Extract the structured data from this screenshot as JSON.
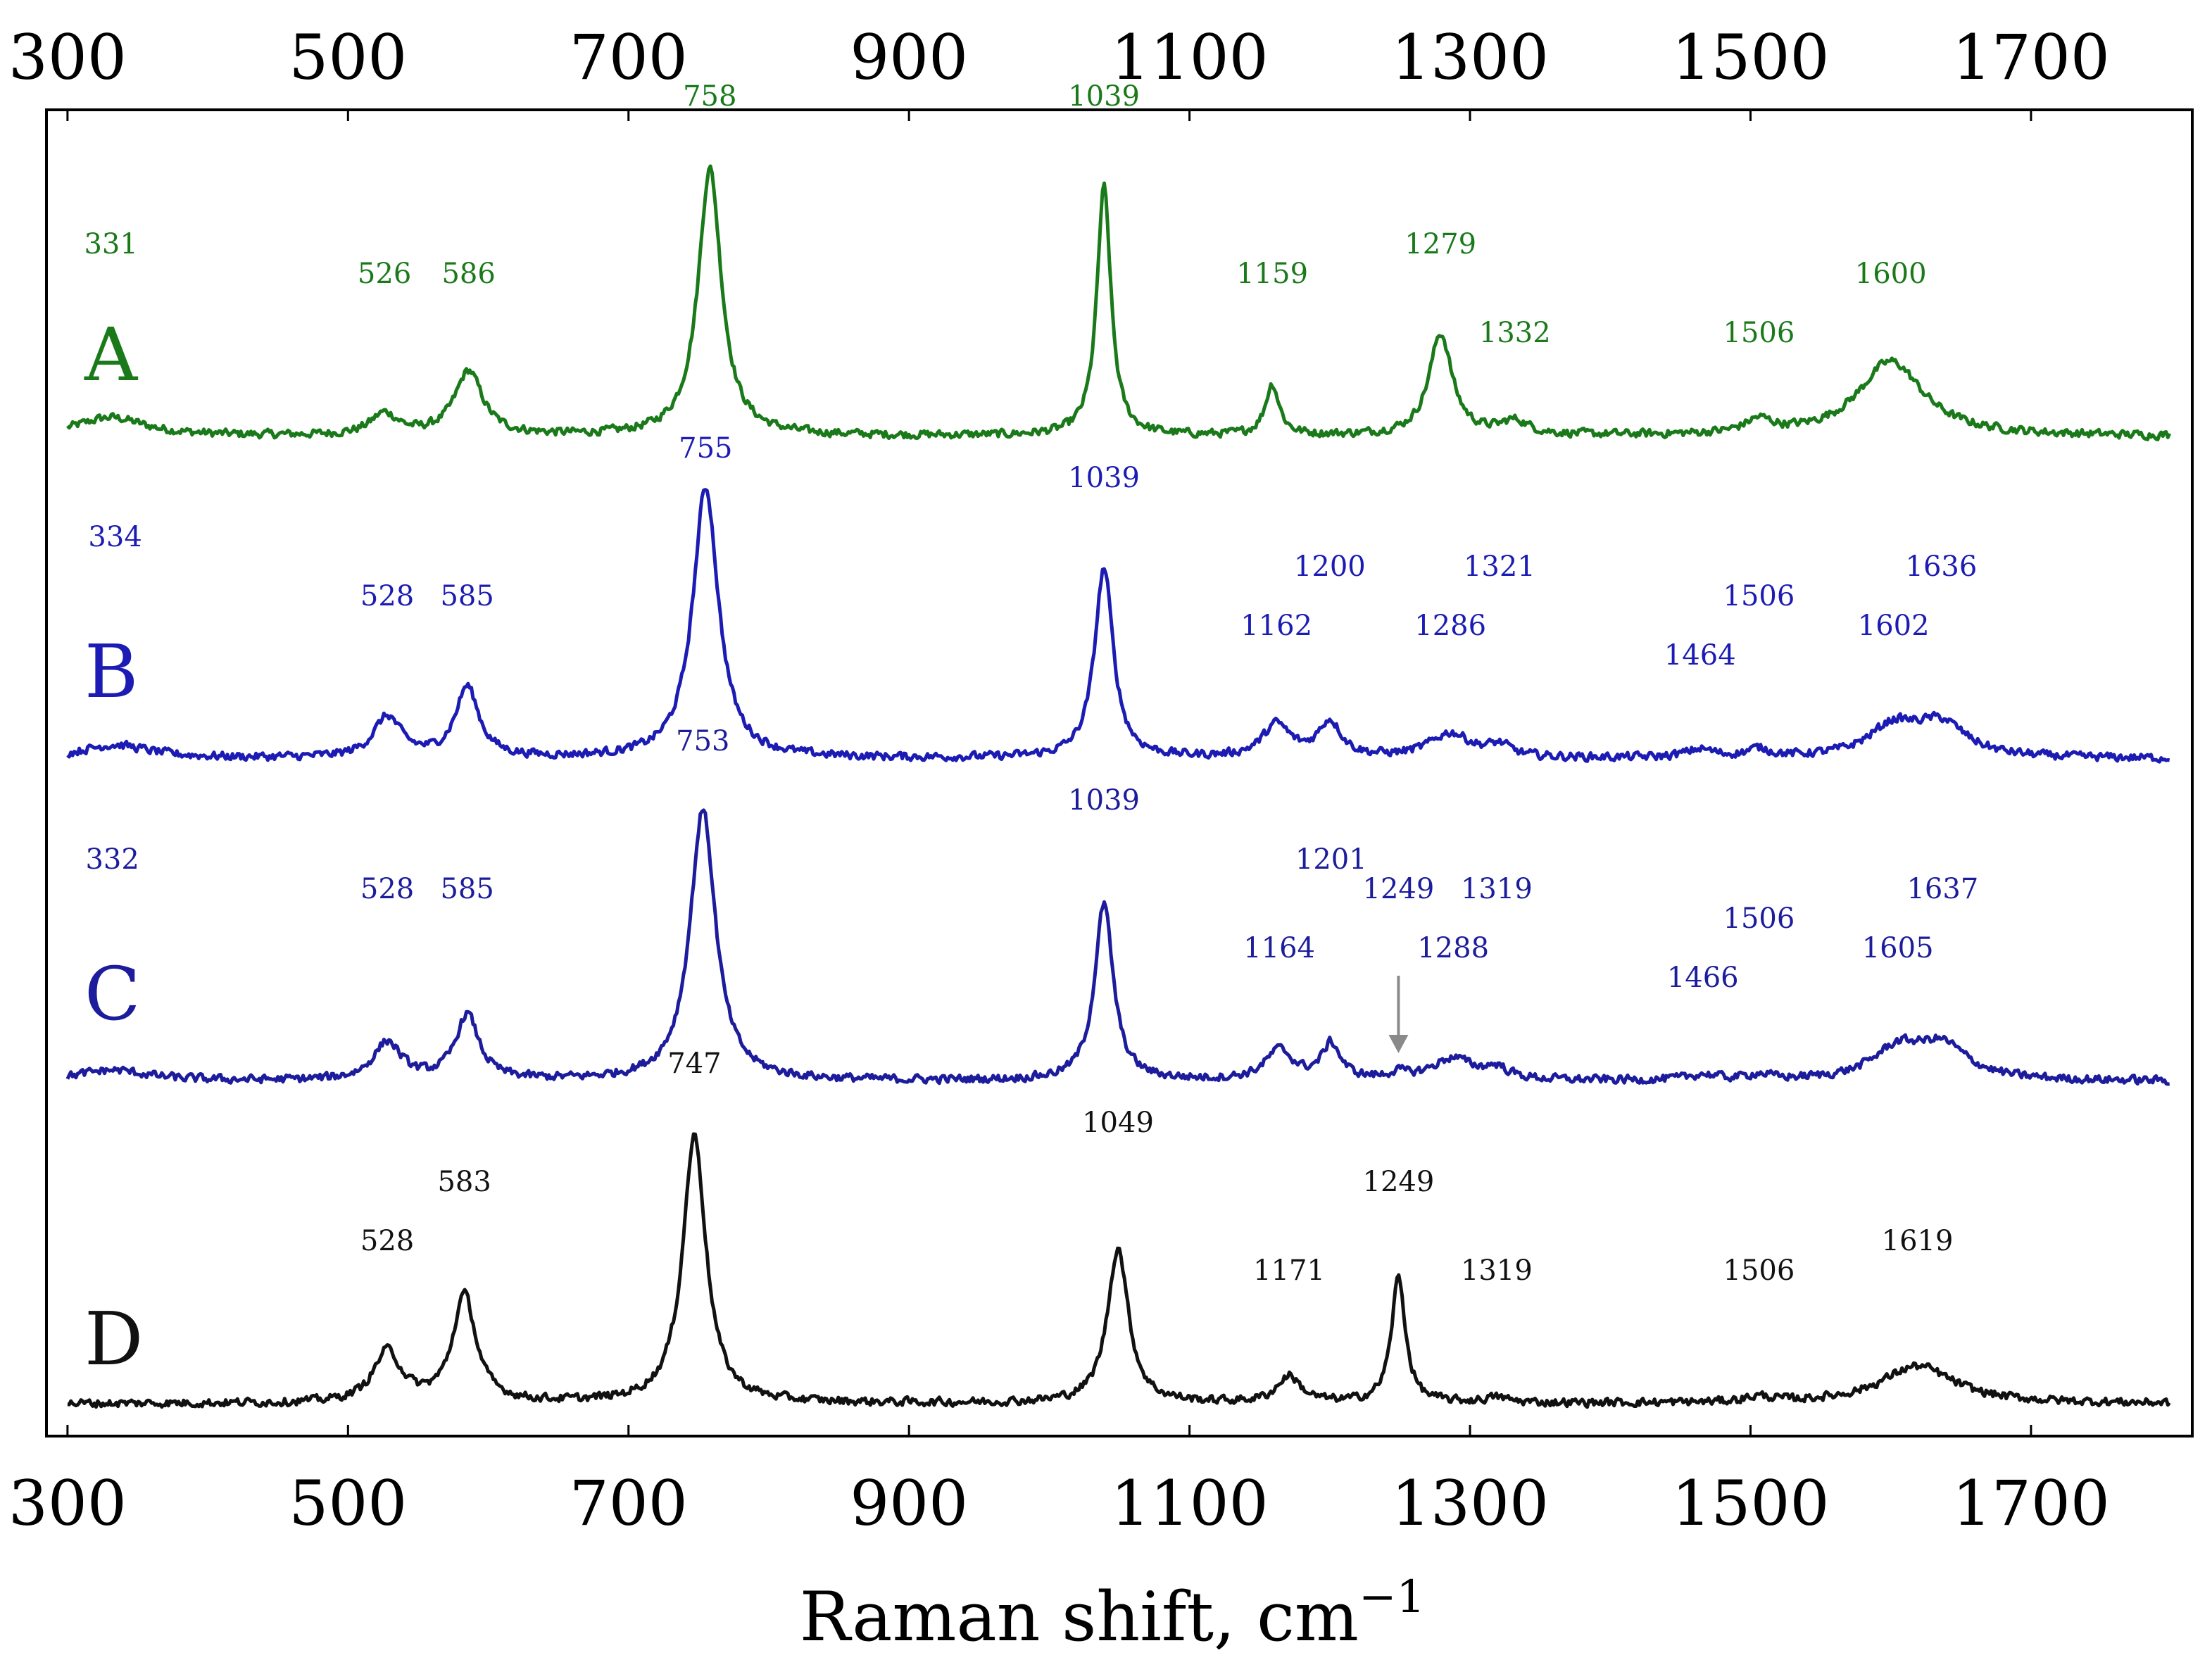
{
  "chart_data": {
    "type": "line",
    "title": "",
    "xlabel": "Raman shift, cm",
    "xlabel_superscript": "−1",
    "ylabel": "",
    "xlim": [
      285,
      1815
    ],
    "x_ticks": [
      300,
      500,
      700,
      900,
      1100,
      1300,
      1500,
      1700
    ],
    "x_tick_labels": [
      "300",
      "500",
      "700",
      "900",
      "1100",
      "1300",
      "1500",
      "1700"
    ],
    "grid": false,
    "stacked_offset": true,
    "series": [
      {
        "name": "A",
        "color": "#1a7a1a",
        "baseline": 0.0,
        "peaks": [
          {
            "x": 331,
            "h": 0.07,
            "w": 30,
            "label": "331"
          },
          {
            "x": 526,
            "h": 0.08,
            "w": 12,
            "label": "526"
          },
          {
            "x": 586,
            "h": 0.24,
            "w": 12,
            "label": "586"
          },
          {
            "x": 758,
            "h": 1.0,
            "w": 10,
            "label": "758"
          },
          {
            "x": 1039,
            "h": 0.93,
            "w": 6,
            "label": "1039"
          },
          {
            "x": 1159,
            "h": 0.19,
            "w": 6,
            "label": "1159"
          },
          {
            "x": 1279,
            "h": 0.38,
            "w": 10,
            "label": "1279"
          },
          {
            "x": 1332,
            "h": 0.05,
            "w": 12,
            "label": "1332"
          },
          {
            "x": 1506,
            "h": 0.05,
            "w": 12,
            "label": "1506"
          },
          {
            "x": 1600,
            "h": 0.28,
            "w": 28,
            "label": "1600"
          }
        ],
        "label_positions": [
          {
            "x": 331,
            "row": 5
          },
          {
            "x": 526,
            "row": 4
          },
          {
            "x": 586,
            "row": 4
          },
          {
            "x": 758,
            "row": 10
          },
          {
            "x": 1039,
            "row": 10
          },
          {
            "x": 1159,
            "row": 4
          },
          {
            "x": 1279,
            "row": 5
          },
          {
            "x": 1332,
            "row": 2
          },
          {
            "x": 1506,
            "row": 2
          },
          {
            "x": 1600,
            "row": 4
          }
        ]
      },
      {
        "name": "B",
        "color": "#1c1cb4",
        "peaks": [
          {
            "x": 334,
            "h": 0.05,
            "w": 30,
            "label": "334"
          },
          {
            "x": 528,
            "h": 0.15,
            "w": 12,
            "label": "528"
          },
          {
            "x": 585,
            "h": 0.26,
            "w": 10,
            "label": "585"
          },
          {
            "x": 755,
            "h": 1.0,
            "w": 11,
            "label": "755"
          },
          {
            "x": 1039,
            "h": 0.7,
            "w": 8,
            "label": "1039"
          },
          {
            "x": 1162,
            "h": 0.12,
            "w": 12,
            "label": "1162"
          },
          {
            "x": 1200,
            "h": 0.13,
            "w": 10,
            "label": "1200"
          },
          {
            "x": 1286,
            "h": 0.09,
            "w": 18,
            "label": "1286"
          },
          {
            "x": 1321,
            "h": 0.04,
            "w": 10,
            "label": "1321"
          },
          {
            "x": 1464,
            "h": 0.03,
            "w": 12,
            "label": "1464"
          },
          {
            "x": 1506,
            "h": 0.03,
            "w": 10,
            "label": "1506"
          },
          {
            "x": 1602,
            "h": 0.11,
            "w": 22,
            "label": "1602"
          },
          {
            "x": 1636,
            "h": 0.12,
            "w": 22,
            "label": "1636"
          }
        ],
        "label_positions": [
          {
            "x": 334,
            "row": 6
          },
          {
            "x": 528,
            "row": 4
          },
          {
            "x": 585,
            "row": 4
          },
          {
            "x": 755,
            "row": 9
          },
          {
            "x": 1039,
            "row": 8
          },
          {
            "x": 1162,
            "row": 3
          },
          {
            "x": 1200,
            "row": 5
          },
          {
            "x": 1286,
            "row": 3
          },
          {
            "x": 1321,
            "row": 5
          },
          {
            "x": 1464,
            "row": 2
          },
          {
            "x": 1506,
            "row": 4
          },
          {
            "x": 1602,
            "row": 3
          },
          {
            "x": 1636,
            "row": 5
          }
        ]
      },
      {
        "name": "C",
        "color": "#1c1c9c",
        "peaks": [
          {
            "x": 332,
            "h": 0.04,
            "w": 30,
            "label": "332"
          },
          {
            "x": 528,
            "h": 0.14,
            "w": 12,
            "label": "528"
          },
          {
            "x": 585,
            "h": 0.24,
            "w": 10,
            "label": "585"
          },
          {
            "x": 753,
            "h": 1.0,
            "w": 11,
            "label": "753"
          },
          {
            "x": 1039,
            "h": 0.65,
            "w": 8,
            "label": "1039"
          },
          {
            "x": 1164,
            "h": 0.11,
            "w": 12,
            "label": "1164"
          },
          {
            "x": 1201,
            "h": 0.13,
            "w": 8,
            "label": "1201"
          },
          {
            "x": 1249,
            "h": 0.02,
            "w": 8,
            "label": "1249"
          },
          {
            "x": 1288,
            "h": 0.08,
            "w": 18,
            "label": "1288"
          },
          {
            "x": 1319,
            "h": 0.04,
            "w": 10,
            "label": "1319"
          },
          {
            "x": 1466,
            "h": 0.02,
            "w": 12,
            "label": "1466"
          },
          {
            "x": 1506,
            "h": 0.02,
            "w": 10,
            "label": "1506"
          },
          {
            "x": 1605,
            "h": 0.11,
            "w": 22,
            "label": "1605"
          },
          {
            "x": 1637,
            "h": 0.12,
            "w": 22,
            "label": "1637"
          }
        ],
        "label_positions": [
          {
            "x": 332,
            "row": 6
          },
          {
            "x": 528,
            "row": 5
          },
          {
            "x": 585,
            "row": 5
          },
          {
            "x": 753,
            "row": 10
          },
          {
            "x": 1039,
            "row": 8
          },
          {
            "x": 1164,
            "row": 3
          },
          {
            "x": 1201,
            "row": 6
          },
          {
            "x": 1249,
            "row": 5
          },
          {
            "x": 1288,
            "row": 3
          },
          {
            "x": 1319,
            "row": 5
          },
          {
            "x": 1466,
            "row": 2
          },
          {
            "x": 1506,
            "row": 4
          },
          {
            "x": 1605,
            "row": 3
          },
          {
            "x": 1637,
            "row": 5
          }
        ],
        "arrow_at": 1249
      },
      {
        "name": "D",
        "color": "#111111",
        "peaks": [
          {
            "x": 528,
            "h": 0.19,
            "w": 12,
            "label": "528"
          },
          {
            "x": 583,
            "h": 0.4,
            "w": 10,
            "label": "583"
          },
          {
            "x": 747,
            "h": 1.0,
            "w": 10,
            "label": "747"
          },
          {
            "x": 1049,
            "h": 0.58,
            "w": 9,
            "label": "1049"
          },
          {
            "x": 1171,
            "h": 0.1,
            "w": 10,
            "label": "1171"
          },
          {
            "x": 1249,
            "h": 0.47,
            "w": 6,
            "label": "1249"
          },
          {
            "x": 1319,
            "h": 0.02,
            "w": 10,
            "label": "1319"
          },
          {
            "x": 1506,
            "h": 0.02,
            "w": 12,
            "label": "1506"
          },
          {
            "x": 1619,
            "h": 0.14,
            "w": 32,
            "label": "1619"
          }
        ],
        "label_positions": [
          {
            "x": 528,
            "row": 4
          },
          {
            "x": 583,
            "row": 6
          },
          {
            "x": 747,
            "row": 10
          },
          {
            "x": 1049,
            "row": 8
          },
          {
            "x": 1171,
            "row": 3
          },
          {
            "x": 1249,
            "row": 6
          },
          {
            "x": 1319,
            "row": 3
          },
          {
            "x": 1506,
            "row": 3
          },
          {
            "x": 1619,
            "row": 4
          }
        ]
      }
    ]
  }
}
